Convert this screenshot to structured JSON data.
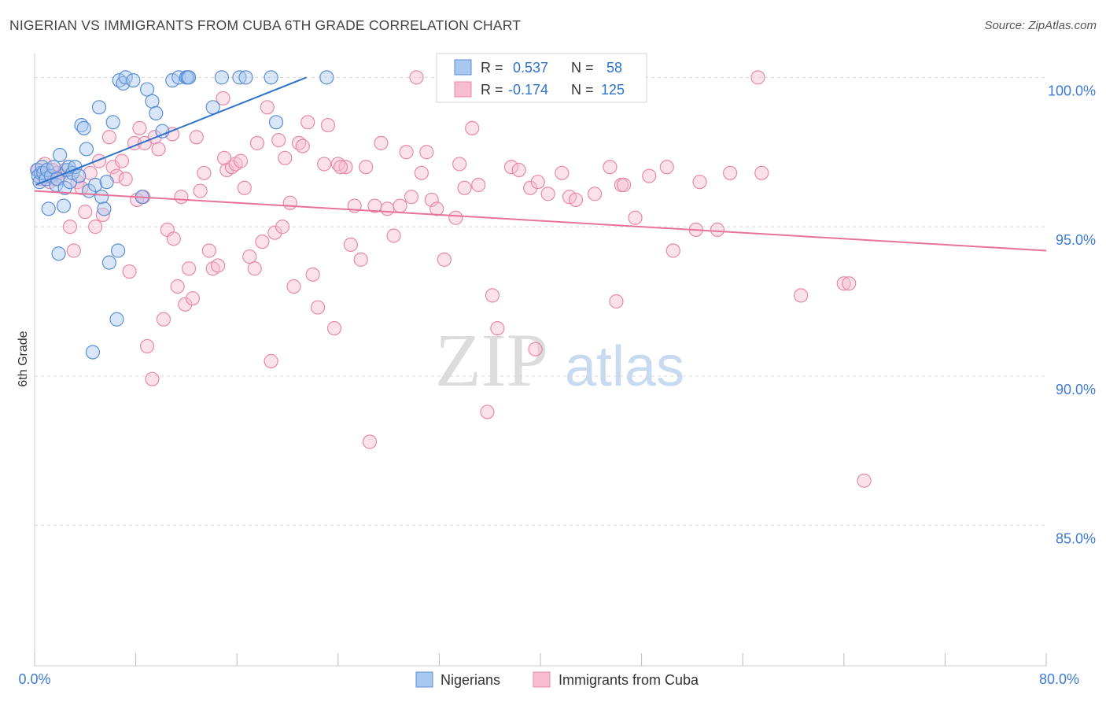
{
  "header": {
    "title": "NIGERIAN VS IMMIGRANTS FROM CUBA 6TH GRADE CORRELATION CHART",
    "source": "Source: ZipAtlas.com"
  },
  "watermark": {
    "zip": "ZIP",
    "atlas": "atlas"
  },
  "legend_box": {
    "rows": [
      {
        "r_label": "R =",
        "r_value": "0.537",
        "n_label": "N =",
        "n_value": "58"
      },
      {
        "r_label": "R =",
        "r_value": "-0.174",
        "n_label": "N =",
        "n_value": "125"
      }
    ]
  },
  "bottom_legend": {
    "items": [
      "Nigerians",
      "Immigrants from Cuba"
    ]
  },
  "colors": {
    "blue_fill": "#a8c8ef",
    "blue_stroke": "#5b8fd6",
    "blue_line": "#2e72c9",
    "pink_fill": "#f6bdd0",
    "pink_stroke": "#e889a8",
    "pink_line": "#e8739a",
    "tick_text": "#3d7bd4",
    "grid": "#d8d8d8"
  },
  "chart_data": {
    "type": "scatter",
    "title": "NIGERIAN VS IMMIGRANTS FROM CUBA 6TH GRADE CORRELATION CHART",
    "xlabel": "",
    "ylabel": "6th Grade",
    "xlim": [
      0,
      80
    ],
    "ylim": [
      80.3,
      100.8
    ],
    "x_tick_labels": [
      "0.0%",
      "80.0%"
    ],
    "y_ticks": [
      {
        "value": 100,
        "label": "100.0%"
      },
      {
        "value": 95,
        "label": "95.0%"
      },
      {
        "value": 90,
        "label": "90.0%"
      },
      {
        "value": 85,
        "label": "85.0%"
      }
    ],
    "series": [
      {
        "name": "Nigerians",
        "r": 0.537,
        "n": 58,
        "trend": [
          [
            0.1,
            96.4
          ],
          [
            21.5,
            100.0
          ]
        ],
        "points": [
          [
            0.2,
            96.9
          ],
          [
            0.3,
            96.7
          ],
          [
            0.4,
            96.5
          ],
          [
            0.5,
            96.8
          ],
          [
            0.6,
            97.0
          ],
          [
            0.7,
            96.8
          ],
          [
            0.9,
            96.6
          ],
          [
            1.0,
            96.9
          ],
          [
            1.1,
            95.6
          ],
          [
            1.3,
            96.7
          ],
          [
            1.5,
            97.0
          ],
          [
            1.7,
            96.4
          ],
          [
            1.8,
            96.6
          ],
          [
            1.9,
            94.1
          ],
          [
            2.0,
            97.4
          ],
          [
            2.3,
            95.7
          ],
          [
            2.4,
            96.3
          ],
          [
            2.6,
            96.9
          ],
          [
            2.7,
            97.0
          ],
          [
            2.8,
            96.5
          ],
          [
            3.0,
            96.8
          ],
          [
            3.2,
            97.0
          ],
          [
            3.5,
            96.7
          ],
          [
            3.7,
            98.4
          ],
          [
            3.9,
            98.3
          ],
          [
            4.1,
            97.6
          ],
          [
            4.3,
            96.2
          ],
          [
            4.6,
            90.8
          ],
          [
            4.8,
            96.4
          ],
          [
            5.1,
            99.0
          ],
          [
            5.3,
            96.0
          ],
          [
            5.5,
            95.6
          ],
          [
            5.7,
            96.5
          ],
          [
            5.9,
            93.8
          ],
          [
            6.2,
            98.5
          ],
          [
            6.5,
            91.9
          ],
          [
            6.6,
            94.2
          ],
          [
            6.7,
            99.9
          ],
          [
            7.0,
            99.8
          ],
          [
            7.2,
            100.0
          ],
          [
            8.5,
            96.0
          ],
          [
            8.9,
            99.6
          ],
          [
            9.3,
            99.2
          ],
          [
            9.6,
            98.8
          ],
          [
            10.1,
            98.2
          ],
          [
            10.9,
            99.9
          ],
          [
            11.4,
            100.0
          ],
          [
            12.0,
            100.0
          ],
          [
            12.1,
            100.0
          ],
          [
            14.1,
            99.0
          ],
          [
            14.8,
            100.0
          ],
          [
            16.2,
            100.0
          ],
          [
            16.7,
            100.0
          ],
          [
            18.7,
            100.0
          ],
          [
            19.1,
            98.5
          ],
          [
            23.1,
            100.0
          ],
          [
            7.8,
            99.9
          ],
          [
            12.2,
            100.0
          ]
        ]
      },
      {
        "name": "Immigrants from Cuba",
        "r": -0.174,
        "n": 125,
        "trend": [
          [
            0.0,
            96.2
          ],
          [
            80.0,
            94.2
          ]
        ],
        "points": [
          [
            0.3,
            96.9
          ],
          [
            0.5,
            96.6
          ],
          [
            0.8,
            97.1
          ],
          [
            1.0,
            96.7
          ],
          [
            1.2,
            96.5
          ],
          [
            1.4,
            96.9
          ],
          [
            1.6,
            96.6
          ],
          [
            1.8,
            96.8
          ],
          [
            2.1,
            96.7
          ],
          [
            2.4,
            96.9
          ],
          [
            2.8,
            95.0
          ],
          [
            3.1,
            94.2
          ],
          [
            3.4,
            96.5
          ],
          [
            3.7,
            96.3
          ],
          [
            4.0,
            95.5
          ],
          [
            4.4,
            96.8
          ],
          [
            4.8,
            95.0
          ],
          [
            5.1,
            97.2
          ],
          [
            5.4,
            95.4
          ],
          [
            5.9,
            98.0
          ],
          [
            6.2,
            97.0
          ],
          [
            6.5,
            96.7
          ],
          [
            6.9,
            97.2
          ],
          [
            7.2,
            96.6
          ],
          [
            7.5,
            93.5
          ],
          [
            7.9,
            97.8
          ],
          [
            8.1,
            95.9
          ],
          [
            8.3,
            98.3
          ],
          [
            8.6,
            96.0
          ],
          [
            8.9,
            91.0
          ],
          [
            9.3,
            89.9
          ],
          [
            9.5,
            98.0
          ],
          [
            9.8,
            97.6
          ],
          [
            10.2,
            91.9
          ],
          [
            10.5,
            94.9
          ],
          [
            10.9,
            98.1
          ],
          [
            11.0,
            94.6
          ],
          [
            11.3,
            93.0
          ],
          [
            11.6,
            96.0
          ],
          [
            11.9,
            92.4
          ],
          [
            12.2,
            93.6
          ],
          [
            12.5,
            92.6
          ],
          [
            12.8,
            98.0
          ],
          [
            13.1,
            96.2
          ],
          [
            13.4,
            96.8
          ],
          [
            13.8,
            94.2
          ],
          [
            14.1,
            93.6
          ],
          [
            14.5,
            93.7
          ],
          [
            14.9,
            99.3
          ],
          [
            15.2,
            96.9
          ],
          [
            15.6,
            97.0
          ],
          [
            15.9,
            97.1
          ],
          [
            16.3,
            97.2
          ],
          [
            16.6,
            96.3
          ],
          [
            17.0,
            94.0
          ],
          [
            17.4,
            93.6
          ],
          [
            17.6,
            97.8
          ],
          [
            18.0,
            94.5
          ],
          [
            18.4,
            99.0
          ],
          [
            18.7,
            90.5
          ],
          [
            19.0,
            94.8
          ],
          [
            19.3,
            97.9
          ],
          [
            19.6,
            95.0
          ],
          [
            19.8,
            97.3
          ],
          [
            20.2,
            95.8
          ],
          [
            20.5,
            93.0
          ],
          [
            20.9,
            97.8
          ],
          [
            21.2,
            97.7
          ],
          [
            21.6,
            98.5
          ],
          [
            22.0,
            93.4
          ],
          [
            22.4,
            92.3
          ],
          [
            22.9,
            97.1
          ],
          [
            23.2,
            98.4
          ],
          [
            23.7,
            91.6
          ],
          [
            24.0,
            97.1
          ],
          [
            24.6,
            97.0
          ],
          [
            25.0,
            94.4
          ],
          [
            25.3,
            95.7
          ],
          [
            25.8,
            93.9
          ],
          [
            26.5,
            87.8
          ],
          [
            26.9,
            95.7
          ],
          [
            27.4,
            97.8
          ],
          [
            27.9,
            95.6
          ],
          [
            28.4,
            94.7
          ],
          [
            28.9,
            95.7
          ],
          [
            29.4,
            97.5
          ],
          [
            29.8,
            96.0
          ],
          [
            30.2,
            100.0
          ],
          [
            30.6,
            96.8
          ],
          [
            31.0,
            97.5
          ],
          [
            31.4,
            95.9
          ],
          [
            31.8,
            95.6
          ],
          [
            32.4,
            93.9
          ],
          [
            33.3,
            95.3
          ],
          [
            34.0,
            96.3
          ],
          [
            34.6,
            98.3
          ],
          [
            35.1,
            96.4
          ],
          [
            35.8,
            88.8
          ],
          [
            36.2,
            92.7
          ],
          [
            36.6,
            91.6
          ],
          [
            37.7,
            97.0
          ],
          [
            38.3,
            96.9
          ],
          [
            39.2,
            96.3
          ],
          [
            39.6,
            90.9
          ],
          [
            39.8,
            96.5
          ],
          [
            40.6,
            96.1
          ],
          [
            41.7,
            96.8
          ],
          [
            42.3,
            96.0
          ],
          [
            42.8,
            95.9
          ],
          [
            44.3,
            96.1
          ],
          [
            45.5,
            97.0
          ],
          [
            46.0,
            92.5
          ],
          [
            46.4,
            96.4
          ],
          [
            47.5,
            95.3
          ],
          [
            48.6,
            96.7
          ],
          [
            50.0,
            97.0
          ],
          [
            50.5,
            94.2
          ],
          [
            52.3,
            94.9
          ],
          [
            52.6,
            96.5
          ],
          [
            54.0,
            94.9
          ],
          [
            55.0,
            96.8
          ],
          [
            57.2,
            100.0
          ],
          [
            57.5,
            96.8
          ],
          [
            60.6,
            92.7
          ],
          [
            64.0,
            93.1
          ],
          [
            64.4,
            93.1
          ],
          [
            65.6,
            86.5
          ],
          [
            46.6,
            96.4
          ],
          [
            26.2,
            97.0
          ],
          [
            33.6,
            97.1
          ],
          [
            15.0,
            97.3
          ],
          [
            24.2,
            97.0
          ],
          [
            8.7,
            97.8
          ]
        ]
      }
    ]
  }
}
